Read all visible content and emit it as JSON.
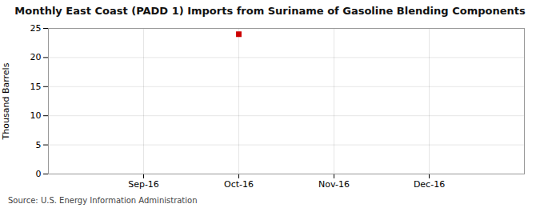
{
  "chart_data": {
    "type": "scatter",
    "title": "Monthly East Coast (PADD 1) Imports from Suriname of Gasoline Blending Components",
    "ylabel": "Thousand Barrels",
    "source": "Source: U.S. Energy Information Administration",
    "categories": [
      "Sep-16",
      "Oct-16",
      "Nov-16",
      "Dec-16"
    ],
    "values": [
      null,
      24,
      null,
      null
    ],
    "color": "#cc0000",
    "marker": "square",
    "ylim": [
      0,
      25
    ],
    "yticks": [
      0,
      5,
      10,
      15,
      20,
      25
    ],
    "grid": true
  }
}
